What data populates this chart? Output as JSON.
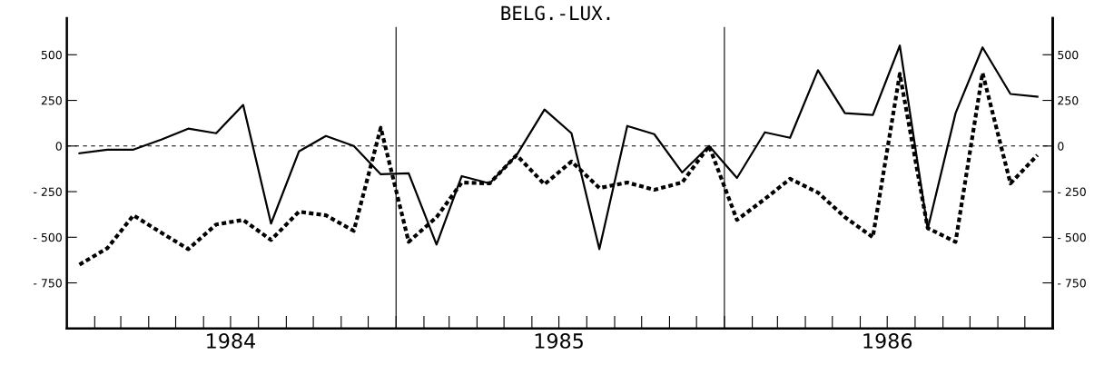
{
  "chart_data": {
    "type": "line",
    "title": "BELG.-LUX.",
    "x": [
      "1984-01-15",
      "1984-02-15",
      "1984-03-15",
      "1984-04-15",
      "1984-05-15",
      "1984-06-15",
      "1984-07-15",
      "1984-08-15",
      "1984-09-15",
      "1984-10-15",
      "1984-11-15",
      "1984-12-15",
      "1985-01-15",
      "1985-02-15",
      "1985-03-15",
      "1985-04-15",
      "1985-05-15",
      "1985-06-15",
      "1985-07-15",
      "1985-08-15",
      "1985-09-15",
      "1985-10-15",
      "1985-11-15",
      "1985-12-15",
      "1986-01-15",
      "1986-02-15",
      "1986-03-15",
      "1986-04-15",
      "1986-05-15",
      "1986-06-15",
      "1986-07-15",
      "1986-08-15",
      "1986-09-15",
      "1986-10-15",
      "1986-11-15",
      "1986-12-15"
    ],
    "series": [
      {
        "color": "#000000",
        "line_style": "solid",
        "values": [
          -40,
          -20,
          -20,
          35,
          95,
          70,
          225,
          -425,
          -30,
          55,
          0,
          -155,
          -150,
          -540,
          -165,
          -205,
          -50,
          200,
          70,
          -565,
          110,
          65,
          -145,
          0,
          -175,
          75,
          45,
          415,
          180,
          170,
          550,
          -455,
          180,
          540,
          285,
          270
        ]
      },
      {
        "color": "#000000",
        "line_style": "dotted",
        "values": [
          -650,
          -560,
          -380,
          -475,
          -565,
          -430,
          -405,
          -515,
          -360,
          -380,
          -465,
          100,
          -525,
          -390,
          -200,
          -205,
          -50,
          -210,
          -85,
          -230,
          -200,
          -240,
          -200,
          0,
          -405,
          -290,
          -180,
          -255,
          -390,
          -500,
          395,
          -450,
          -525,
          400,
          -205,
          -50
        ]
      }
    ],
    "xlim": [
      "1984-01-01",
      "1987-01-01"
    ],
    "xticks": [
      {
        "value": "1984-01-01",
        "label": null
      },
      {
        "value": "1984-02-01",
        "label": null
      },
      {
        "value": "1984-03-01",
        "label": null
      },
      {
        "value": "1984-04-01",
        "label": null
      },
      {
        "value": "1984-05-01",
        "label": null
      },
      {
        "value": "1984-06-01",
        "label": null
      },
      {
        "value": "1984-07-01",
        "label": "1984"
      },
      {
        "value": "1984-08-01",
        "label": null
      },
      {
        "value": "1984-09-01",
        "label": null
      },
      {
        "value": "1984-10-01",
        "label": null
      },
      {
        "value": "1984-11-01",
        "label": null
      },
      {
        "value": "1984-12-01",
        "label": null
      },
      {
        "value": "1985-01-01",
        "label": null
      },
      {
        "value": "1985-02-01",
        "label": null
      },
      {
        "value": "1985-03-01",
        "label": null
      },
      {
        "value": "1985-04-01",
        "label": null
      },
      {
        "value": "1985-05-01",
        "label": null
      },
      {
        "value": "1985-06-01",
        "label": null
      },
      {
        "value": "1985-07-01",
        "label": "1985"
      },
      {
        "value": "1985-08-01",
        "label": null
      },
      {
        "value": "1985-09-01",
        "label": null
      },
      {
        "value": "1985-10-01",
        "label": null
      },
      {
        "value": "1985-11-01",
        "label": null
      },
      {
        "value": "1985-12-01",
        "label": null
      },
      {
        "value": "1986-01-01",
        "label": null
      },
      {
        "value": "1986-02-01",
        "label": null
      },
      {
        "value": "1986-03-01",
        "label": null
      },
      {
        "value": "1986-04-01",
        "label": null
      },
      {
        "value": "1986-05-01",
        "label": null
      },
      {
        "value": "1986-06-01",
        "label": null
      },
      {
        "value": "1986-07-01",
        "label": "1986"
      },
      {
        "value": "1986-08-01",
        "label": null
      },
      {
        "value": "1986-09-01",
        "label": null
      },
      {
        "value": "1986-10-01",
        "label": null
      },
      {
        "value": "1986-11-01",
        "label": null
      },
      {
        "value": "1986-12-01",
        "label": null
      },
      {
        "value": "1987-01-01",
        "label": null
      }
    ],
    "ylim": [
      -1000,
      700
    ],
    "yticks": [
      500,
      250,
      0,
      {
        "value": -250,
        "label": "- 250"
      },
      {
        "value": -500,
        "label": "- 500"
      },
      {
        "value": -750,
        "label": "- 750"
      }
    ],
    "y2lim": [
      -1000,
      700
    ],
    "y2ticks": [
      500,
      250,
      0,
      {
        "value": -250,
        "label": "- 250"
      },
      {
        "value": -500,
        "label": "- 500"
      },
      {
        "value": -750,
        "label": "- 750"
      }
    ],
    "ref_lines": [
      {
        "axis": "y",
        "value": 0,
        "line_style": "dashed",
        "color": "#000000"
      },
      {
        "axis": "x",
        "value": "1985-01-01",
        "line_style": "solid",
        "color": "#000000"
      },
      {
        "axis": "x",
        "value": "1986-01-01",
        "line_style": "solid",
        "color": "#000000"
      }
    ],
    "grid": false,
    "marker": "none"
  }
}
